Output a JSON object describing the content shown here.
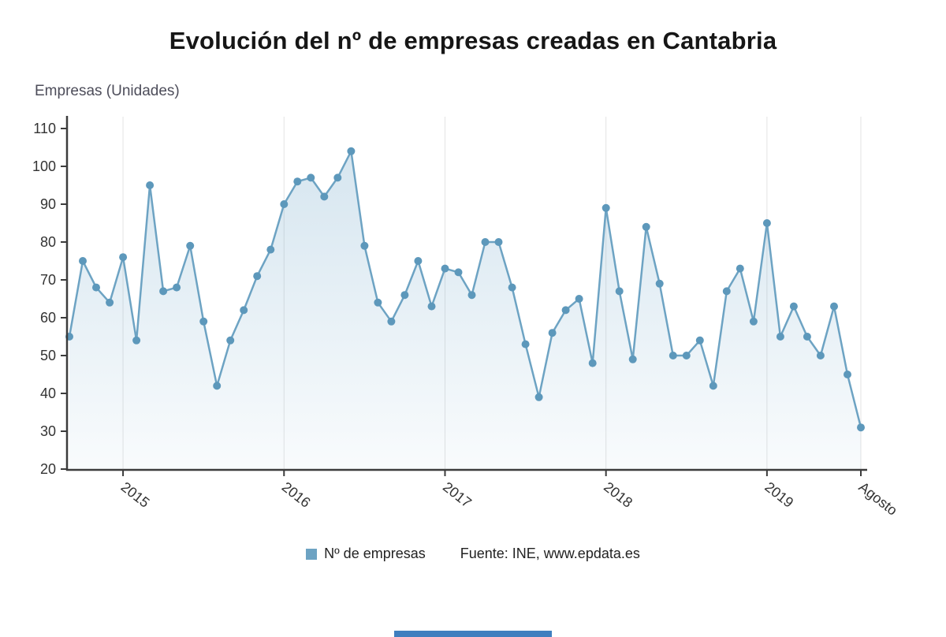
{
  "title": "Evolución del nº de empresas creadas en Cantabria",
  "y_axis_title": "Empresas (Unidades)",
  "legend": {
    "series_label": "Nº de empresas",
    "source": "Fuente: INE, www.epdata.es"
  },
  "colors": {
    "line": "#6da3c3",
    "dot": "#5d98bb",
    "area_top": "#7fb0cf",
    "grid": "#e3e3e3",
    "axis": "#3c3c3c",
    "footer_bar": "#3f7fbf"
  },
  "chart_data": {
    "type": "line",
    "title": "Evolución del nº de empresas creadas en Cantabria",
    "xlabel": "",
    "ylabel": "Empresas (Unidades)",
    "ylim": [
      20,
      110
    ],
    "yticks": [
      20,
      30,
      40,
      50,
      60,
      70,
      80,
      90,
      100,
      110
    ],
    "xticks": [
      "2015",
      "2016",
      "2017",
      "2018",
      "2019",
      "Agosto"
    ],
    "xtick_indices": [
      4,
      16,
      28,
      40,
      52,
      59
    ],
    "grid": "vertical-only",
    "legend_position": "bottom",
    "series": [
      {
        "name": "Nº de empresas",
        "values": [
          55,
          75,
          68,
          64,
          76,
          54,
          95,
          67,
          68,
          79,
          59,
          42,
          54,
          62,
          71,
          78,
          90,
          96,
          97,
          92,
          97,
          104,
          79,
          64,
          59,
          66,
          75,
          63,
          73,
          72,
          66,
          80,
          80,
          68,
          53,
          39,
          56,
          62,
          65,
          48,
          89,
          67,
          49,
          84,
          69,
          50,
          50,
          54,
          42,
          67,
          73,
          59,
          85,
          55,
          63,
          55,
          50,
          63,
          45,
          31
        ]
      }
    ]
  }
}
